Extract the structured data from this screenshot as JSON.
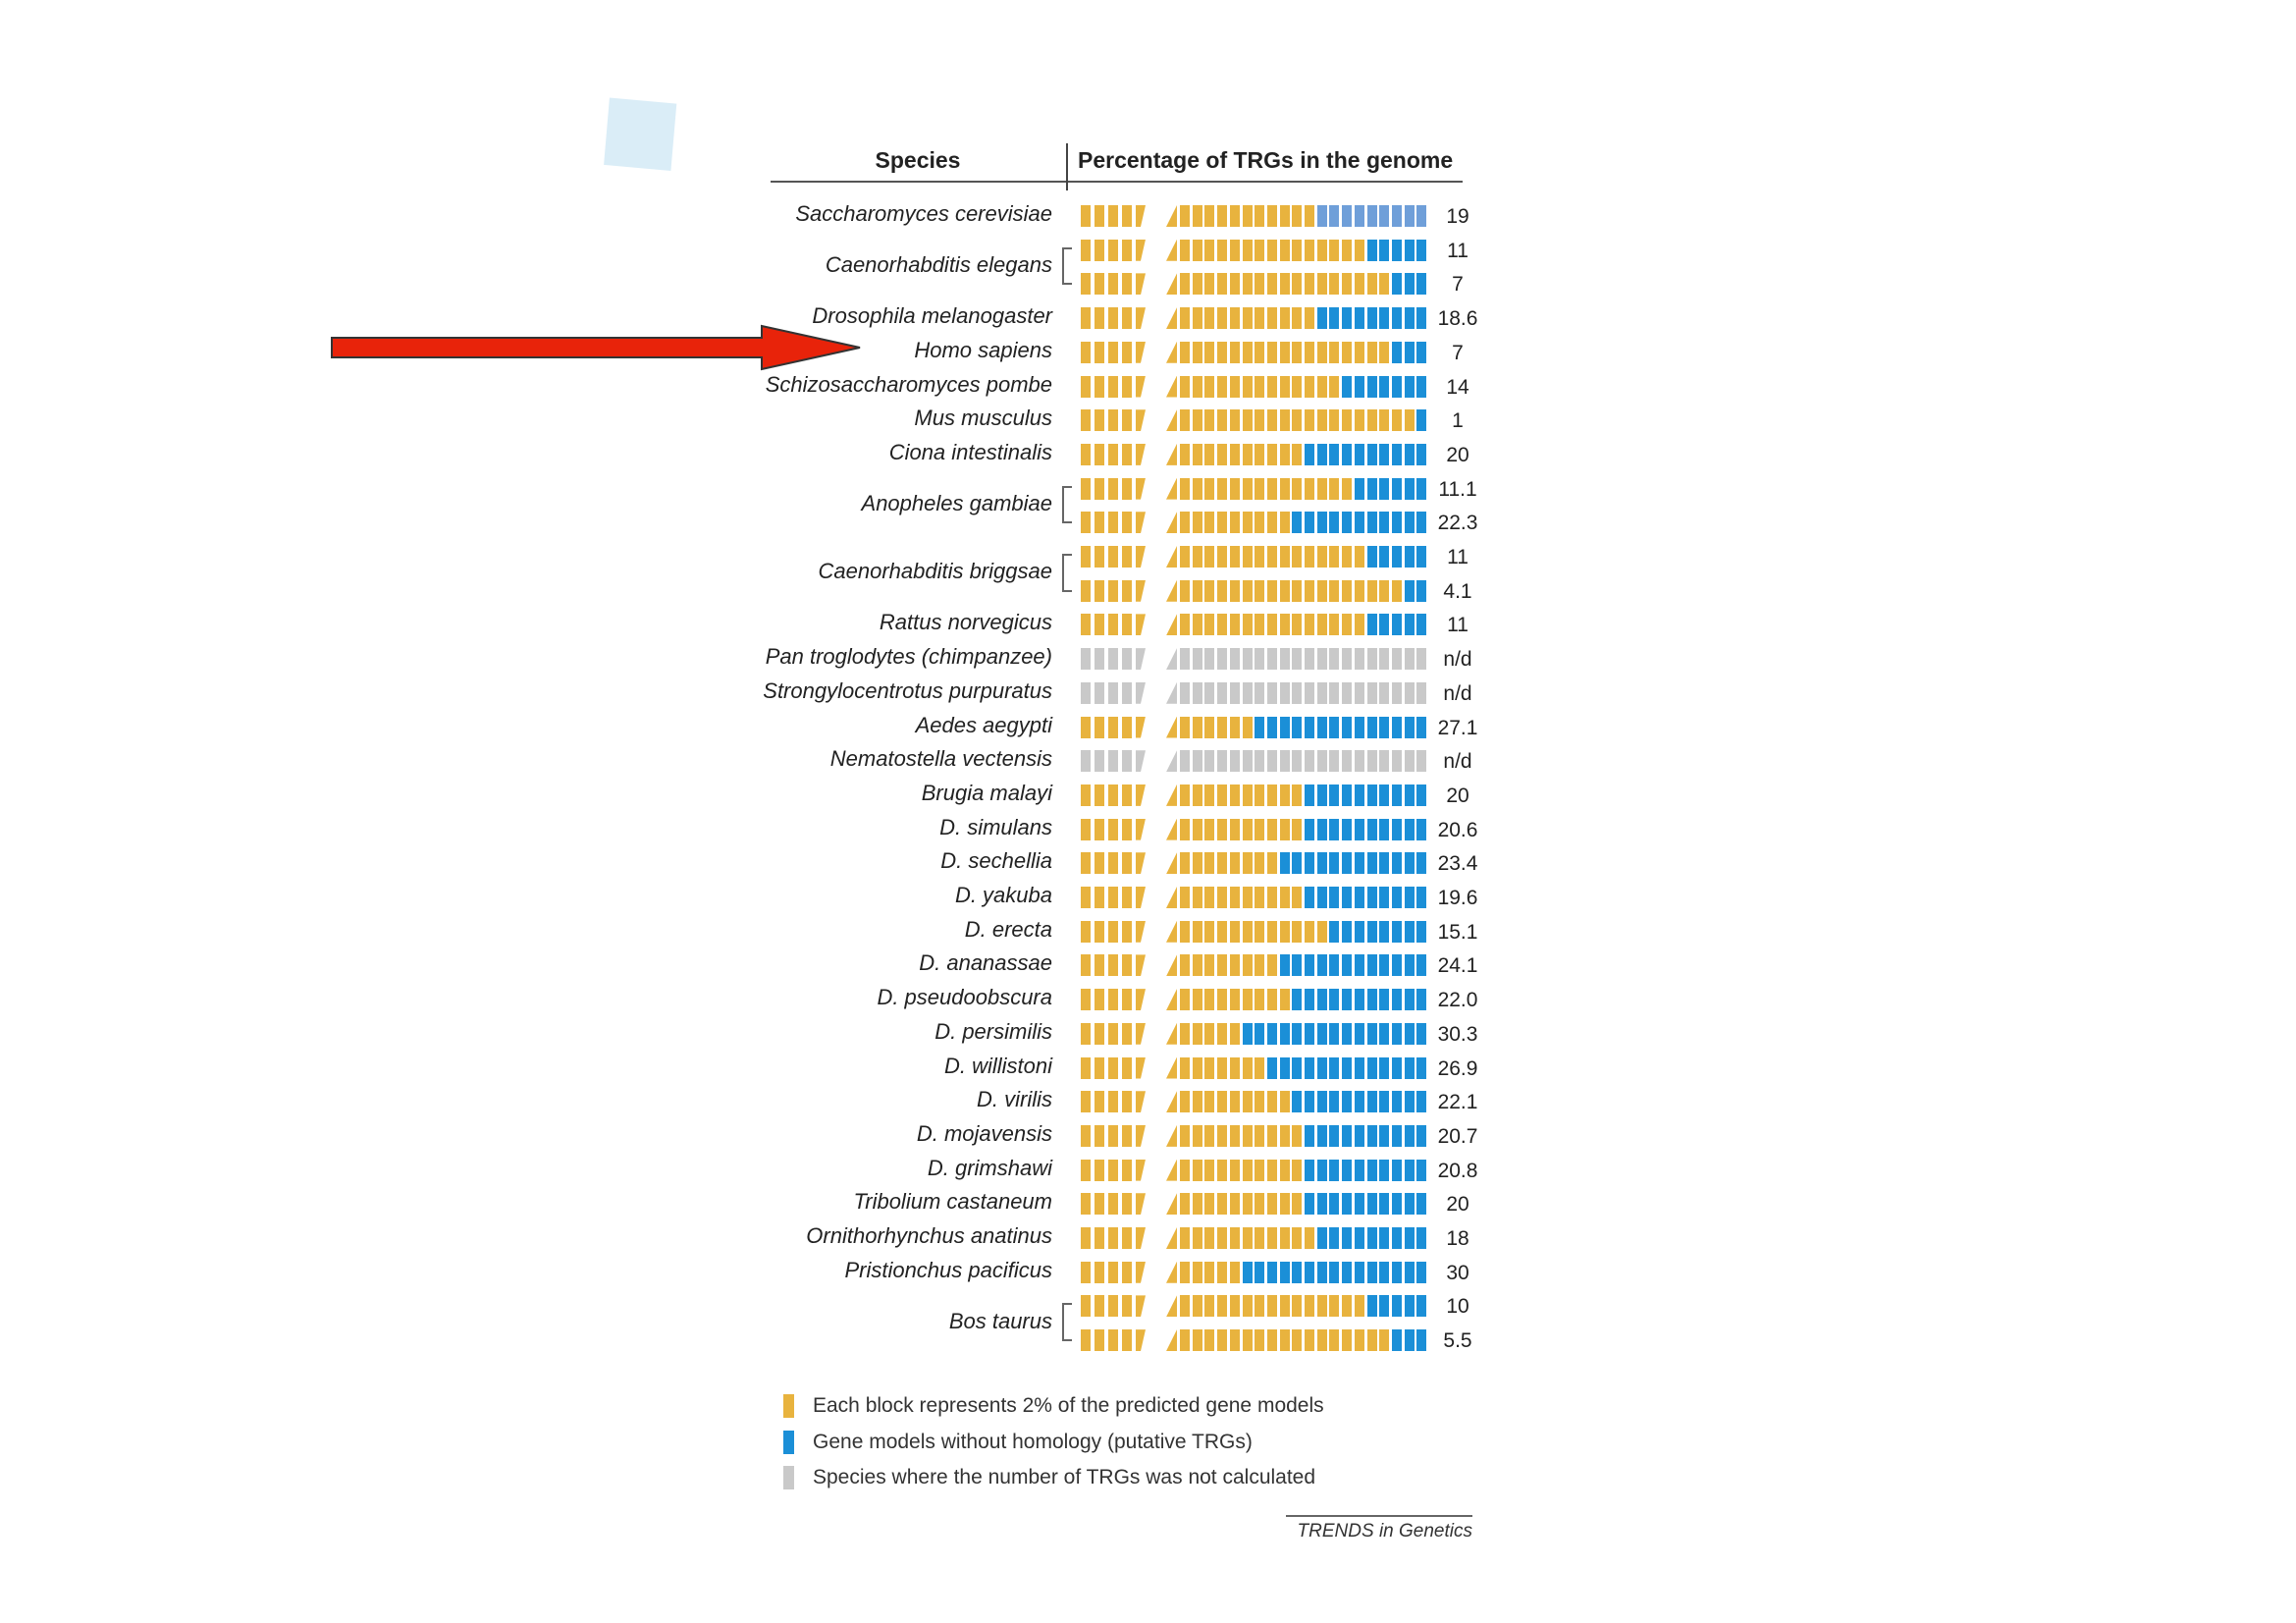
{
  "chart_data": {
    "type": "bar",
    "title": "Percentage of TRGs in the genome",
    "column_headers": {
      "species": "Species",
      "percentage": "Percentage of TRGs in the genome"
    },
    "unit_note": "Each block represents 2% of the predicted gene models",
    "colors": {
      "homology": "#e8b33e",
      "trg": "#1b8fd7",
      "trg_light": "#6f9fd9",
      "not_calculated": "#c9c9c9"
    },
    "rows": [
      {
        "species": "Saccharomyces cerevisiae",
        "values": [
          "19"
        ],
        "light": true
      },
      {
        "species": "Caenorhabditis elegans",
        "values": [
          "11",
          "7"
        ]
      },
      {
        "species": "Drosophila melanogaster",
        "values": [
          "18.6"
        ]
      },
      {
        "species": "Homo sapiens",
        "values": [
          "7"
        ]
      },
      {
        "species": "Schizosaccharomyces pombe",
        "values": [
          "14"
        ]
      },
      {
        "species": "Mus musculus",
        "values": [
          "1"
        ]
      },
      {
        "species": "Ciona intestinalis",
        "values": [
          "20"
        ]
      },
      {
        "species": "Anopheles gambiae",
        "values": [
          "11.1",
          "22.3"
        ]
      },
      {
        "species": "Caenorhabditis briggsae",
        "values": [
          "11",
          "4.1"
        ]
      },
      {
        "species": "Rattus norvegicus",
        "values": [
          "11"
        ]
      },
      {
        "species": "Pan troglodytes (chimpanzee)",
        "values": [
          "n/d"
        ]
      },
      {
        "species": "Strongylocentrotus purpuratus",
        "values": [
          "n/d"
        ]
      },
      {
        "species": "Aedes aegypti",
        "values": [
          "27.1"
        ]
      },
      {
        "species": "Nematostella vectensis",
        "values": [
          "n/d"
        ]
      },
      {
        "species": "Brugia malayi",
        "values": [
          "20"
        ]
      },
      {
        "species": "D.  simulans",
        "values": [
          "20.6"
        ]
      },
      {
        "species": "D.  sechellia",
        "values": [
          "23.4"
        ]
      },
      {
        "species": "D.  yakuba",
        "values": [
          "19.6"
        ]
      },
      {
        "species": "D.  erecta",
        "values": [
          "15.1"
        ]
      },
      {
        "species": "D.  ananassae",
        "values": [
          "24.1"
        ]
      },
      {
        "species": "D.  pseudoobscura",
        "values": [
          "22.0"
        ]
      },
      {
        "species": "D.  persimilis",
        "values": [
          "30.3"
        ]
      },
      {
        "species": "D.  willistoni",
        "values": [
          "26.9"
        ]
      },
      {
        "species": "D.  virilis",
        "values": [
          "22.1"
        ]
      },
      {
        "species": "D.  mojavensis",
        "values": [
          "20.7"
        ]
      },
      {
        "species": "D.  grimshawi",
        "values": [
          "20.8"
        ]
      },
      {
        "species": "Tribolium castaneum",
        "values": [
          "20"
        ]
      },
      {
        "species": "Ornithorhynchus anatinus",
        "values": [
          "18"
        ]
      },
      {
        "species": "Pristionchus pacificus",
        "values": [
          "30"
        ]
      },
      {
        "species": "Bos taurus",
        "values": [
          "10",
          "5.5"
        ]
      }
    ],
    "legend": [
      {
        "label": "Each block represents 2% of the predicted gene models",
        "color": "#e8b33e"
      },
      {
        "label": "Gene models without homology (putative TRGs)",
        "color": "#1b8fd7"
      },
      {
        "label": "Species where the number of TRGs was not calculated",
        "color": "#c9c9c9"
      }
    ],
    "credit": "TRENDS in Genetics"
  },
  "annotation": {
    "arrow_color": "#e8230a"
  }
}
